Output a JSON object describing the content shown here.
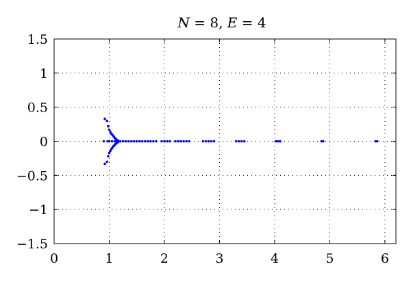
{
  "chart_data": {
    "type": "scatter",
    "title": "N = 8, E = 4",
    "title_parts": {
      "n_sym": "N",
      "n_val": " = 8, ",
      "e_sym": "E",
      "e_val": " = 4"
    },
    "xlabel": "",
    "ylabel": "",
    "xlim": [
      0,
      6.2
    ],
    "ylim": [
      -1.5,
      1.5
    ],
    "x_ticks": [
      0,
      1,
      2,
      3,
      4,
      5,
      6
    ],
    "x_tick_labels": [
      "0",
      "1",
      "2",
      "3",
      "4",
      "5",
      "6"
    ],
    "y_ticks": [
      1.5,
      1,
      0.5,
      0,
      -0.5,
      -1,
      -1.5
    ],
    "y_tick_labels": [
      "1.5",
      "1",
      "0.5",
      "0",
      "−0.5",
      "−1",
      "−1.5"
    ],
    "grid": true,
    "marker_color": "#0000ff",
    "series": [
      {
        "points": [
          [
            0.92,
            0.33
          ],
          [
            0.96,
            0.3
          ],
          [
            0.98,
            0.22
          ],
          [
            1.0,
            0.17
          ],
          [
            1.02,
            0.14
          ],
          [
            1.04,
            0.11
          ],
          [
            1.06,
            0.09
          ],
          [
            1.08,
            0.07
          ],
          [
            1.1,
            0.05
          ],
          [
            1.12,
            0.035
          ],
          [
            1.14,
            0.02
          ],
          [
            1.16,
            0.01
          ],
          [
            0.92,
            -0.33
          ],
          [
            0.96,
            -0.3
          ],
          [
            0.98,
            -0.22
          ],
          [
            1.0,
            -0.17
          ],
          [
            1.02,
            -0.14
          ],
          [
            1.04,
            -0.11
          ],
          [
            1.06,
            -0.09
          ],
          [
            1.08,
            -0.07
          ],
          [
            1.1,
            -0.05
          ],
          [
            1.12,
            -0.035
          ],
          [
            1.14,
            -0.02
          ],
          [
            1.16,
            -0.01
          ],
          [
            0.9,
            0.0
          ],
          [
            0.97,
            0.0
          ],
          [
            1.0,
            0.0
          ],
          [
            1.05,
            0.0
          ],
          [
            1.1,
            0.0
          ],
          [
            1.15,
            0.0
          ],
          [
            1.2,
            0.0
          ],
          [
            1.25,
            0.0
          ],
          [
            1.3,
            0.0
          ],
          [
            1.35,
            0.0
          ],
          [
            1.4,
            0.0
          ],
          [
            1.45,
            0.0
          ],
          [
            1.5,
            0.0
          ],
          [
            1.55,
            0.0
          ],
          [
            1.6,
            0.0
          ],
          [
            1.65,
            0.0
          ],
          [
            1.7,
            0.0
          ],
          [
            1.75,
            0.0
          ],
          [
            1.8,
            0.0
          ],
          [
            1.85,
            0.0
          ],
          [
            1.95,
            0.0
          ],
          [
            2.0,
            0.0
          ],
          [
            2.05,
            0.0
          ],
          [
            2.1,
            0.0
          ],
          [
            2.2,
            0.0
          ],
          [
            2.25,
            0.0
          ],
          [
            2.3,
            0.0
          ],
          [
            2.35,
            0.0
          ],
          [
            2.4,
            0.0
          ],
          [
            2.45,
            0.0
          ],
          [
            2.7,
            0.0
          ],
          [
            2.75,
            0.0
          ],
          [
            2.8,
            0.0
          ],
          [
            2.85,
            0.0
          ],
          [
            2.9,
            0.0
          ],
          [
            3.3,
            0.0
          ],
          [
            3.35,
            0.0
          ],
          [
            3.4,
            0.0
          ],
          [
            3.45,
            0.0
          ],
          [
            4.02,
            0.0
          ],
          [
            4.06,
            0.0
          ],
          [
            4.1,
            0.0
          ],
          [
            4.85,
            0.0
          ],
          [
            4.88,
            0.0
          ],
          [
            5.83,
            0.0
          ],
          [
            5.86,
            0.0
          ]
        ]
      }
    ]
  }
}
